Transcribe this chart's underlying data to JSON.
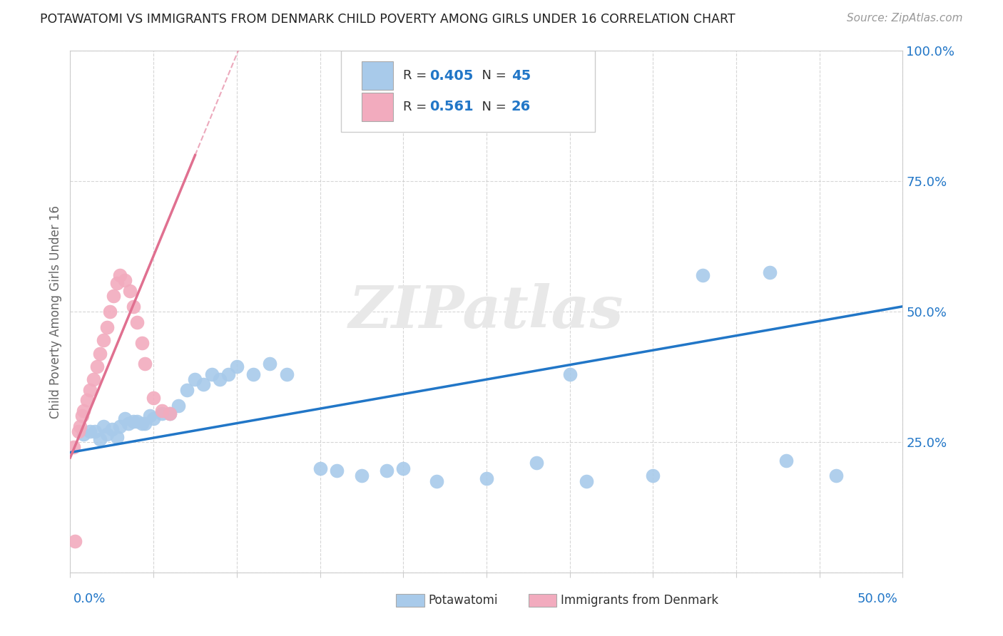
{
  "title": "POTAWATOMI VS IMMIGRANTS FROM DENMARK CHILD POVERTY AMONG GIRLS UNDER 16 CORRELATION CHART",
  "source": "Source: ZipAtlas.com",
  "ylabel": "Child Poverty Among Girls Under 16",
  "blue_R": "0.405",
  "blue_N": "45",
  "pink_R": "0.561",
  "pink_N": "26",
  "blue_color": "#A8CAEA",
  "pink_color": "#F2ABBE",
  "blue_line_color": "#2176C7",
  "pink_line_color": "#E07090",
  "background_color": "#FFFFFF",
  "legend_label_blue": "Potawatomi",
  "legend_label_pink": "Immigrants from Denmark",
  "xlim": [
    0.0,
    0.5
  ],
  "ylim": [
    0.0,
    1.0
  ],
  "blue_scatter_x": [
    0.008,
    0.012,
    0.015,
    0.018,
    0.02,
    0.022,
    0.025,
    0.028,
    0.03,
    0.033,
    0.035,
    0.038,
    0.04,
    0.043,
    0.045,
    0.048,
    0.05,
    0.055,
    0.06,
    0.065,
    0.07,
    0.075,
    0.08,
    0.085,
    0.09,
    0.095,
    0.1,
    0.11,
    0.12,
    0.13,
    0.15,
    0.16,
    0.175,
    0.19,
    0.2,
    0.22,
    0.25,
    0.28,
    0.3,
    0.31,
    0.35,
    0.38,
    0.42,
    0.43,
    0.46
  ],
  "blue_scatter_y": [
    0.265,
    0.27,
    0.27,
    0.255,
    0.28,
    0.265,
    0.275,
    0.26,
    0.28,
    0.295,
    0.285,
    0.29,
    0.29,
    0.285,
    0.285,
    0.3,
    0.295,
    0.305,
    0.305,
    0.32,
    0.35,
    0.37,
    0.36,
    0.38,
    0.37,
    0.38,
    0.395,
    0.38,
    0.4,
    0.38,
    0.2,
    0.195,
    0.185,
    0.195,
    0.2,
    0.175,
    0.18,
    0.21,
    0.38,
    0.175,
    0.185,
    0.57,
    0.575,
    0.215,
    0.185
  ],
  "pink_scatter_x": [
    0.002,
    0.005,
    0.006,
    0.007,
    0.008,
    0.01,
    0.012,
    0.014,
    0.016,
    0.018,
    0.02,
    0.022,
    0.024,
    0.026,
    0.028,
    0.03,
    0.033,
    0.036,
    0.038,
    0.04,
    0.043,
    0.045,
    0.05,
    0.055,
    0.06,
    0.003
  ],
  "pink_scatter_y": [
    0.24,
    0.27,
    0.28,
    0.3,
    0.31,
    0.33,
    0.35,
    0.37,
    0.395,
    0.42,
    0.445,
    0.47,
    0.5,
    0.53,
    0.555,
    0.57,
    0.56,
    0.54,
    0.51,
    0.48,
    0.44,
    0.4,
    0.335,
    0.31,
    0.305,
    0.06
  ],
  "blue_trend_x": [
    0.0,
    0.5
  ],
  "blue_trend_y": [
    0.23,
    0.51
  ],
  "pink_trend_x": [
    0.0,
    0.075
  ],
  "pink_trend_y": [
    0.22,
    0.8
  ]
}
